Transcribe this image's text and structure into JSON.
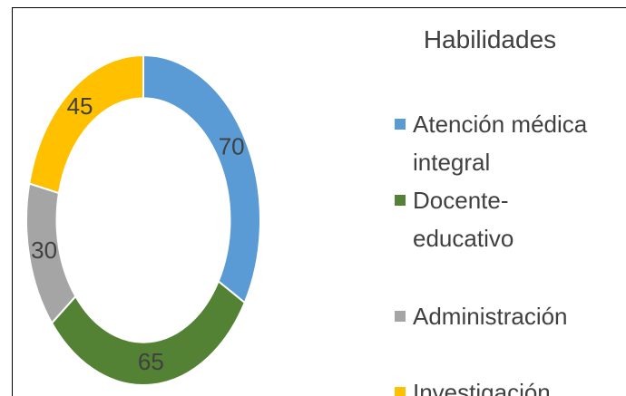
{
  "chart_data": {
    "type": "donut",
    "title": "Habilidades",
    "categories": [
      "Atención médica integral",
      "Docente-educativo",
      "Administración",
      "Investigación"
    ],
    "values": [
      70,
      65,
      30,
      45
    ],
    "colors": [
      "#5b9bd5",
      "#548235",
      "#a5a5a5",
      "#ffc000"
    ],
    "legend": "right"
  }
}
